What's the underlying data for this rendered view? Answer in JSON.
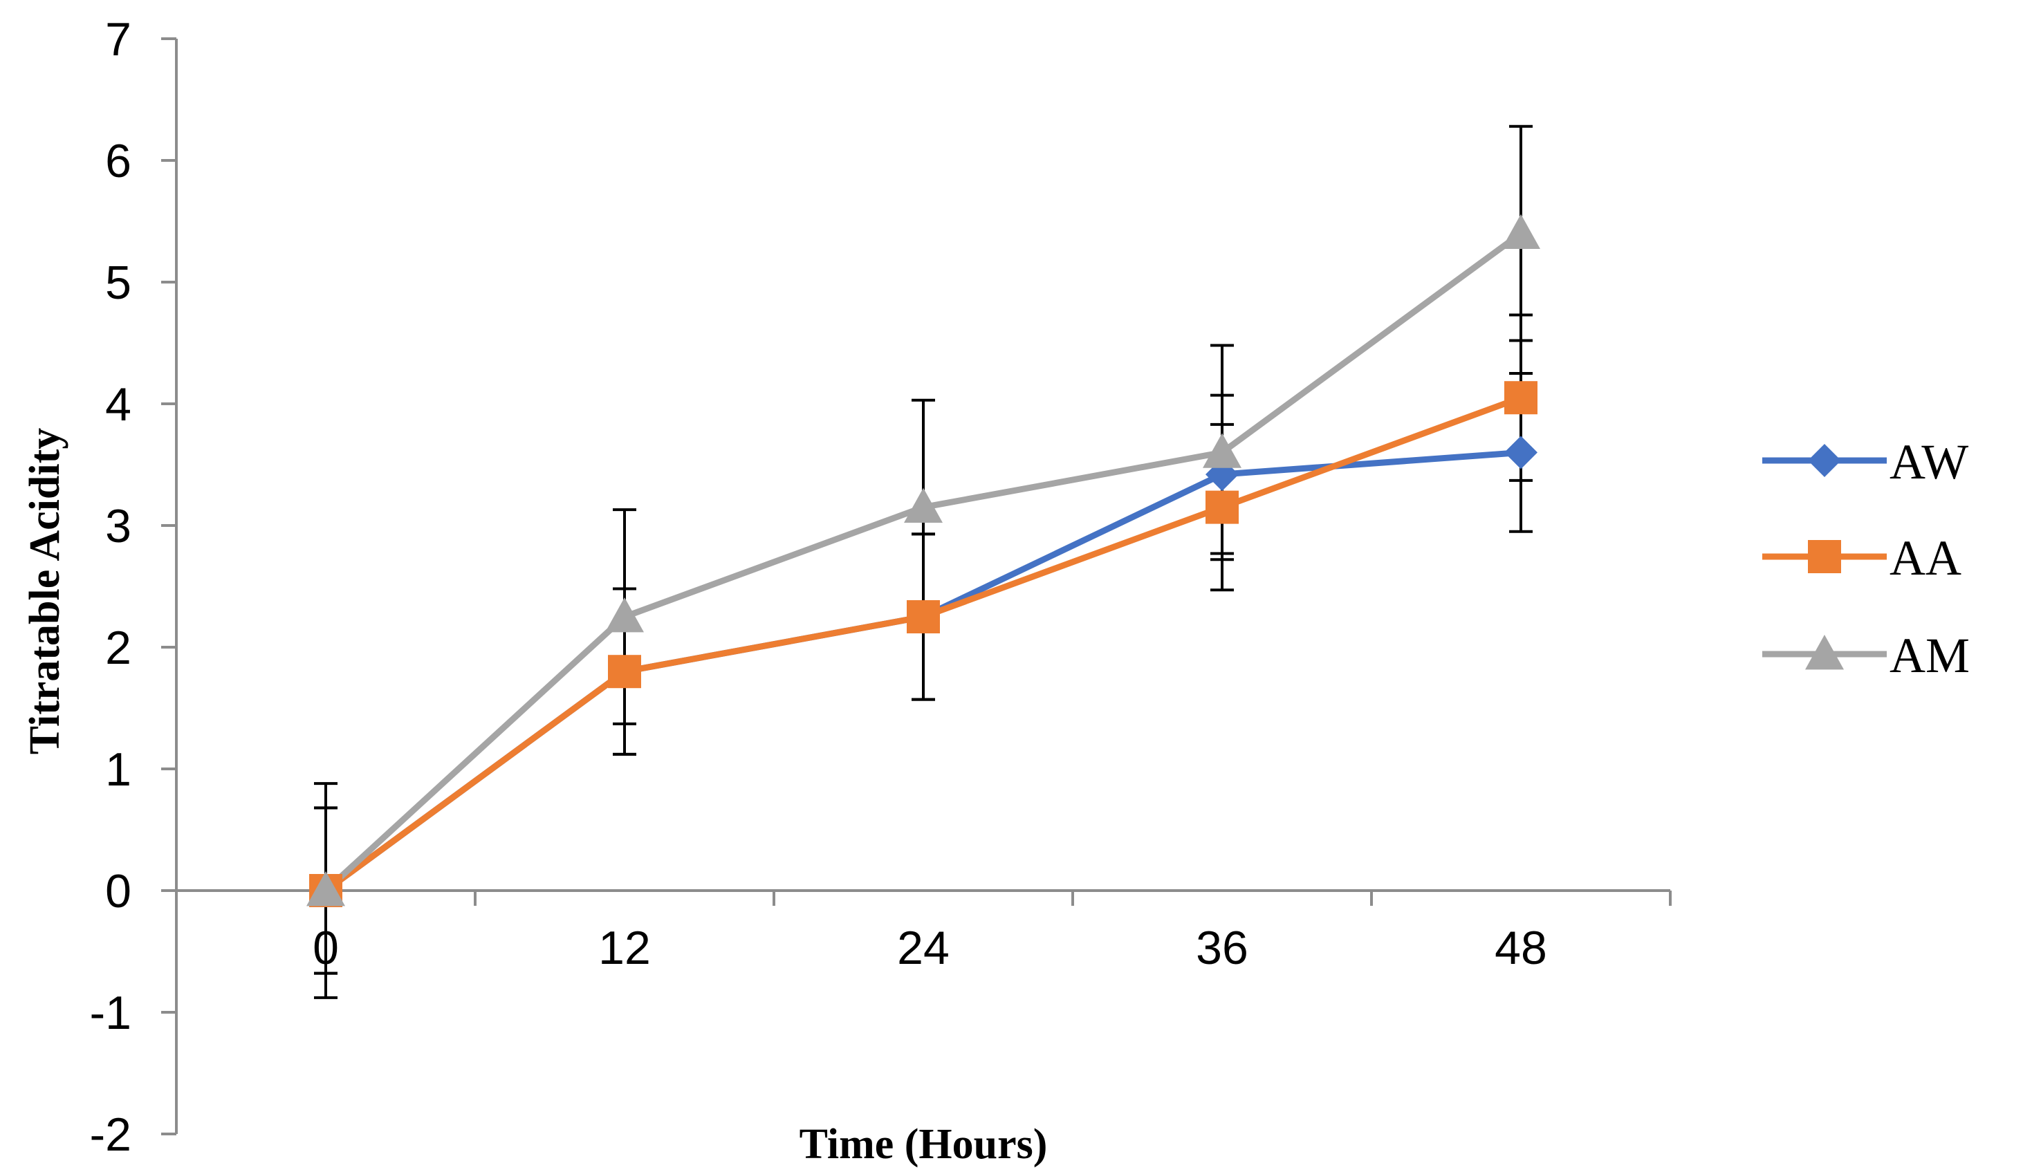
{
  "chart_data": {
    "type": "line",
    "title": "",
    "xlabel": "Time (Hours)",
    "ylabel": "Titratable Acidity",
    "categories": [
      "0",
      "12",
      "24",
      "36",
      "48"
    ],
    "yticks": [
      -2,
      -1,
      0,
      1,
      2,
      3,
      4,
      5,
      6,
      7
    ],
    "ylim": [
      -2,
      7
    ],
    "grid": false,
    "legend_position": "right",
    "series": [
      {
        "name": "AW",
        "color": "#4472C4",
        "marker": "diamond",
        "values": [
          0,
          1.8,
          2.25,
          3.42,
          3.6
        ],
        "error": [
          0.68,
          0.68,
          0.68,
          0.65,
          0.65
        ]
      },
      {
        "name": "AA",
        "color": "#ED7D31",
        "marker": "square",
        "values": [
          0,
          1.8,
          2.25,
          3.15,
          4.05
        ],
        "error": [
          0.68,
          0.68,
          0.68,
          0.68,
          0.68
        ]
      },
      {
        "name": "AM",
        "color": "#A5A5A5",
        "marker": "triangle",
        "values": [
          0,
          2.25,
          3.15,
          3.6,
          5.4
        ],
        "error": [
          0.88,
          0.88,
          0.88,
          0.88,
          0.88
        ]
      }
    ]
  }
}
